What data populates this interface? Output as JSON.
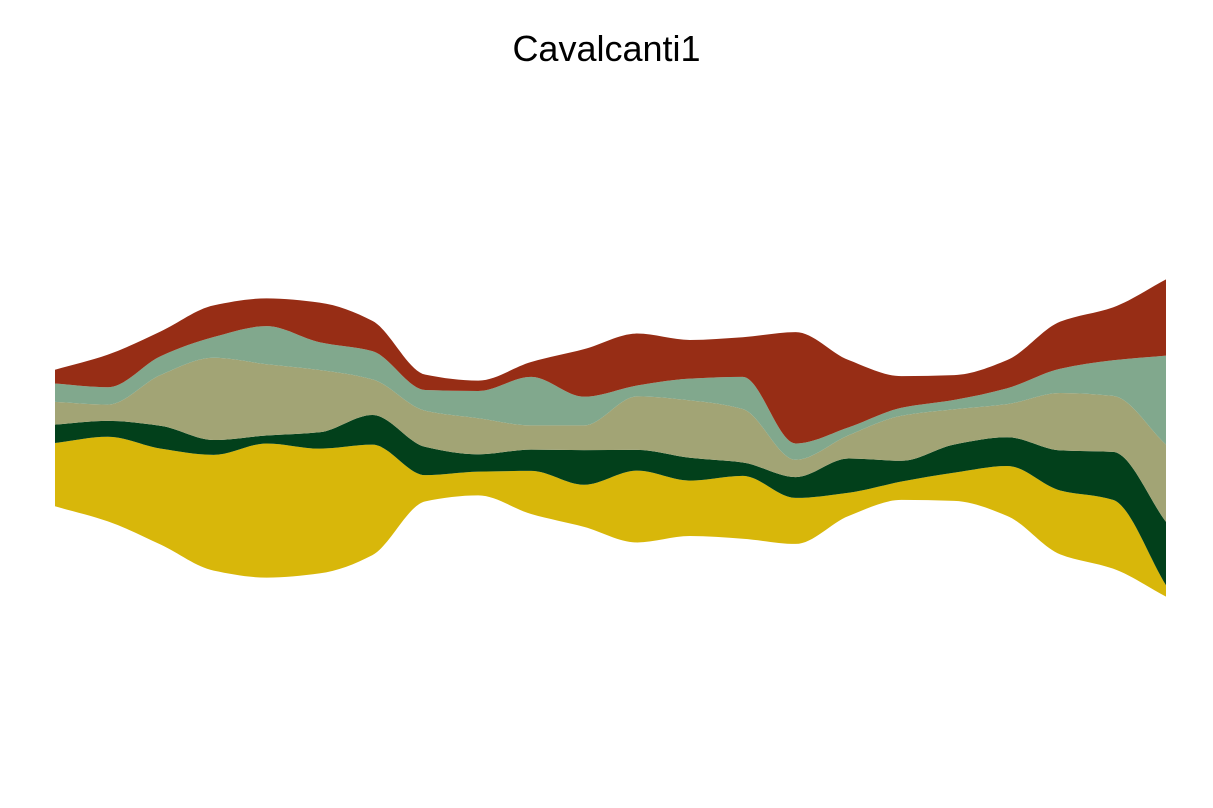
{
  "chart_data": {
    "type": "area",
    "subtype": "streamgraph",
    "title": "Cavalcanti1",
    "xlabel": "",
    "ylabel": "",
    "grid": false,
    "legend": "none",
    "x": [
      0,
      1,
      2,
      3,
      4,
      5,
      6,
      7,
      8,
      9,
      10,
      11,
      12,
      13,
      14,
      15,
      16,
      17,
      18,
      19,
      20,
      21
    ],
    "series": [
      {
        "color": "#D8B70A",
        "values": [
          12.8,
          17.1,
          19.4,
          23.4,
          27.1,
          25.2,
          22.3,
          5.3,
          4.8,
          8.7,
          8.5,
          14.5,
          11.2,
          12.7,
          9.3,
          4.7,
          3.7,
          5.7,
          10.1,
          12.9,
          13.9,
          2.3
        ]
      },
      {
        "color": "#02401B",
        "values": [
          3.7,
          3.2,
          4.6,
          3.0,
          1.6,
          3.3,
          6.0,
          5.7,
          3.5,
          4.3,
          7.0,
          4.2,
          4.6,
          2.7,
          4.2,
          6.9,
          4.2,
          5.7,
          5.8,
          8.1,
          9.7,
          12.8
        ]
      },
      {
        "color": "#A2A475",
        "values": [
          4.6,
          3.3,
          10.3,
          16.6,
          14.4,
          12.6,
          7.2,
          7.3,
          7.3,
          4.9,
          5.0,
          10.8,
          11.6,
          10.8,
          3.5,
          4.7,
          9.1,
          7.1,
          6.7,
          11.6,
          11.3,
          15.6
        ]
      },
      {
        "color": "#81A88D",
        "values": [
          3.7,
          3.5,
          3.8,
          4.2,
          7.7,
          5.6,
          5.7,
          4.2,
          5.5,
          9.8,
          5.8,
          2.2,
          4.4,
          6.5,
          3.3,
          1.6,
          1.6,
          1.9,
          3.2,
          4.9,
          7.2,
          18.0
        ]
      },
      {
        "color": "#972D15",
        "values": [
          2.8,
          6.6,
          5.0,
          6.4,
          5.6,
          8.0,
          6.1,
          3.1,
          2.1,
          3.0,
          9.6,
          10.5,
          7.8,
          8.0,
          22.5,
          13.6,
          6.4,
          5.0,
          5.7,
          9.5,
          10.7,
          15.4
        ]
      }
    ]
  }
}
